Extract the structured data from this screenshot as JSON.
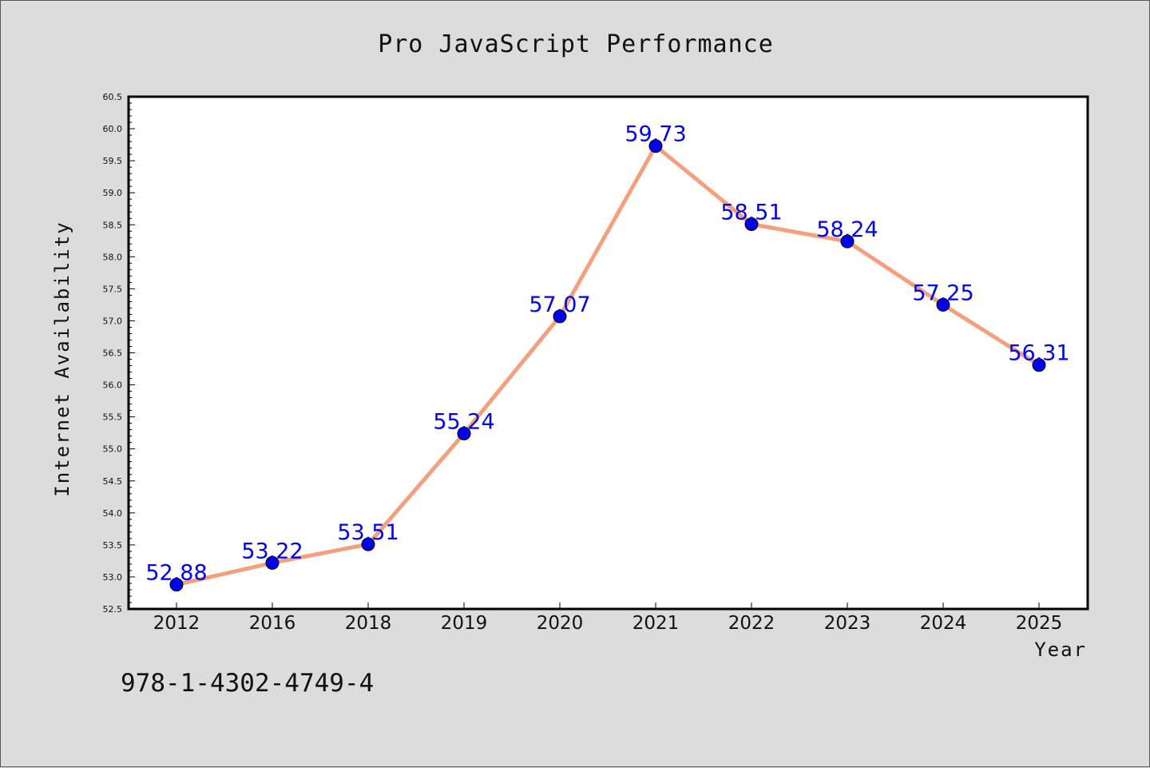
{
  "chart_data": {
    "type": "line",
    "title": "Pro JavaScript Performance",
    "xlabel": "Year",
    "ylabel": "Internet Availability",
    "categories": [
      "2012",
      "2016",
      "2018",
      "2019",
      "2020",
      "2021",
      "2022",
      "2023",
      "2024",
      "2025"
    ],
    "series": [
      {
        "values": [
          52.88,
          53.22,
          53.51,
          55.24,
          57.07,
          59.73,
          58.51,
          58.24,
          57.25,
          56.31
        ]
      }
    ],
    "data_labels": [
      "52.88",
      "53.22",
      "53.51",
      "55.24",
      "57.07",
      "59.73",
      "58.51",
      "58.24",
      "57.25",
      "56.31"
    ],
    "ylim": [
      52.5,
      60.5
    ],
    "y_ticks": [
      "52.5",
      "53.0",
      "53.5",
      "54.0",
      "54.5",
      "55.0",
      "55.5",
      "56.0",
      "56.5",
      "57.0",
      "57.5",
      "58.0",
      "58.5",
      "59.0",
      "59.5",
      "60.0",
      "60.5"
    ],
    "grid": false,
    "legend": "none",
    "colors": {
      "line": "#f4a07f",
      "marker": "#0000ee",
      "data_label": "#0000ee",
      "figure_background": "#dcdcdc",
      "plot_background": "#ffffff"
    }
  },
  "footer": {
    "isbn": "978-1-4302-4749-4"
  }
}
